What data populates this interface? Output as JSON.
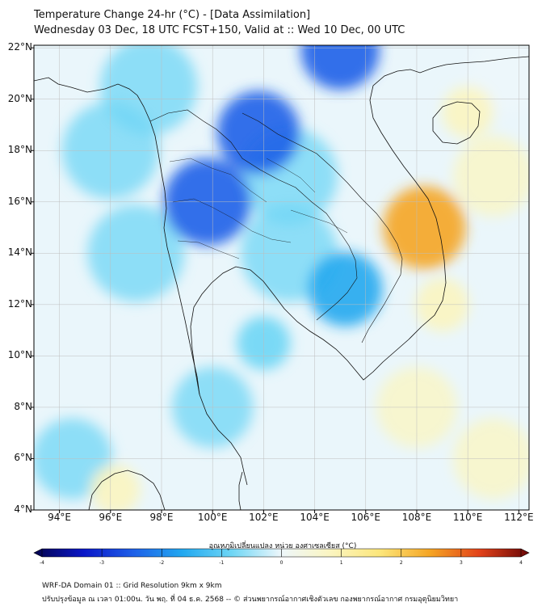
{
  "title_line1": "Temperature Change 24-hr (°C) - [Data Assimilation]",
  "title_line2": "Wednesday 03 Dec, 18 UTC FCST+150, Valid at :: Wed 10 Dec, 00 UTC",
  "axes": {
    "lat_labels": [
      "22°N",
      "20°N",
      "18°N",
      "16°N",
      "14°N",
      "12°N",
      "10°N",
      "8°N",
      "6°N",
      "4°N"
    ],
    "lon_labels": [
      "94°E",
      "96°E",
      "98°E",
      "100°E",
      "102°E",
      "104°E",
      "106°E",
      "108°E",
      "110°E",
      "112°E"
    ],
    "lat_range": [
      4,
      22.1
    ],
    "lon_range": [
      93,
      112.4
    ]
  },
  "colorbar": {
    "title": "อุณหภูมิเปลี่ยนแปลง หน่วย องศาเซลเซียส (°C)",
    "ticks": [
      "-4",
      "-3",
      "-2",
      "-1",
      "0",
      "1",
      "2",
      "3",
      "4"
    ],
    "range": [
      -4,
      4
    ],
    "colors": [
      "#02024d",
      "#0a16c8",
      "#1e5fe8",
      "#22a8f0",
      "#6fd6f5",
      "#eef7fb",
      "#fbf5c0",
      "#fce67a",
      "#f5a524",
      "#e2421a",
      "#6a0606"
    ]
  },
  "footer_line1": "WRF-DA Domain 01 :: Grid Resolution 9km x 9km",
  "footer_line2": "ปรับปรุงข้อมูล ณ เวลา 01:00น. วัน พฤ. ที่ 04 ธ.ค. 2568 -- © ส่วนพยากรณ์อากาศเชิงตัวเลข กองพยากรณ์อากาศ กรมอุตุนิยมวิทยา",
  "anomalies": [
    {
      "name": "cold-core-central-thailand",
      "lat": 16.0,
      "lon": 99.8,
      "value": -2.6
    },
    {
      "name": "cold-core-north-laos",
      "lat": 18.7,
      "lon": 101.8,
      "value": -2.4
    },
    {
      "name": "cold-core-yunnan",
      "lat": 21.9,
      "lon": 105.0,
      "value": -2.2
    },
    {
      "name": "cold-core-cambodia",
      "lat": 12.6,
      "lon": 105.2,
      "value": -2.0
    },
    {
      "name": "cold-area-gulf-of-thailand",
      "lat": 10.5,
      "lon": 102.0,
      "value": -1.0
    },
    {
      "name": "warm-core-central-vietnam",
      "lat": 15.0,
      "lon": 108.3,
      "value": 2.4
    },
    {
      "name": "warm-area-south-china-sea",
      "lat": 12.0,
      "lon": 109.0,
      "value": 1.0
    },
    {
      "name": "warm-area-hainan",
      "lat": 19.5,
      "lon": 110.0,
      "value": 0.9
    },
    {
      "name": "warm-area-sumatra",
      "lat": 4.8,
      "lon": 96.2,
      "value": 0.8
    }
  ]
}
